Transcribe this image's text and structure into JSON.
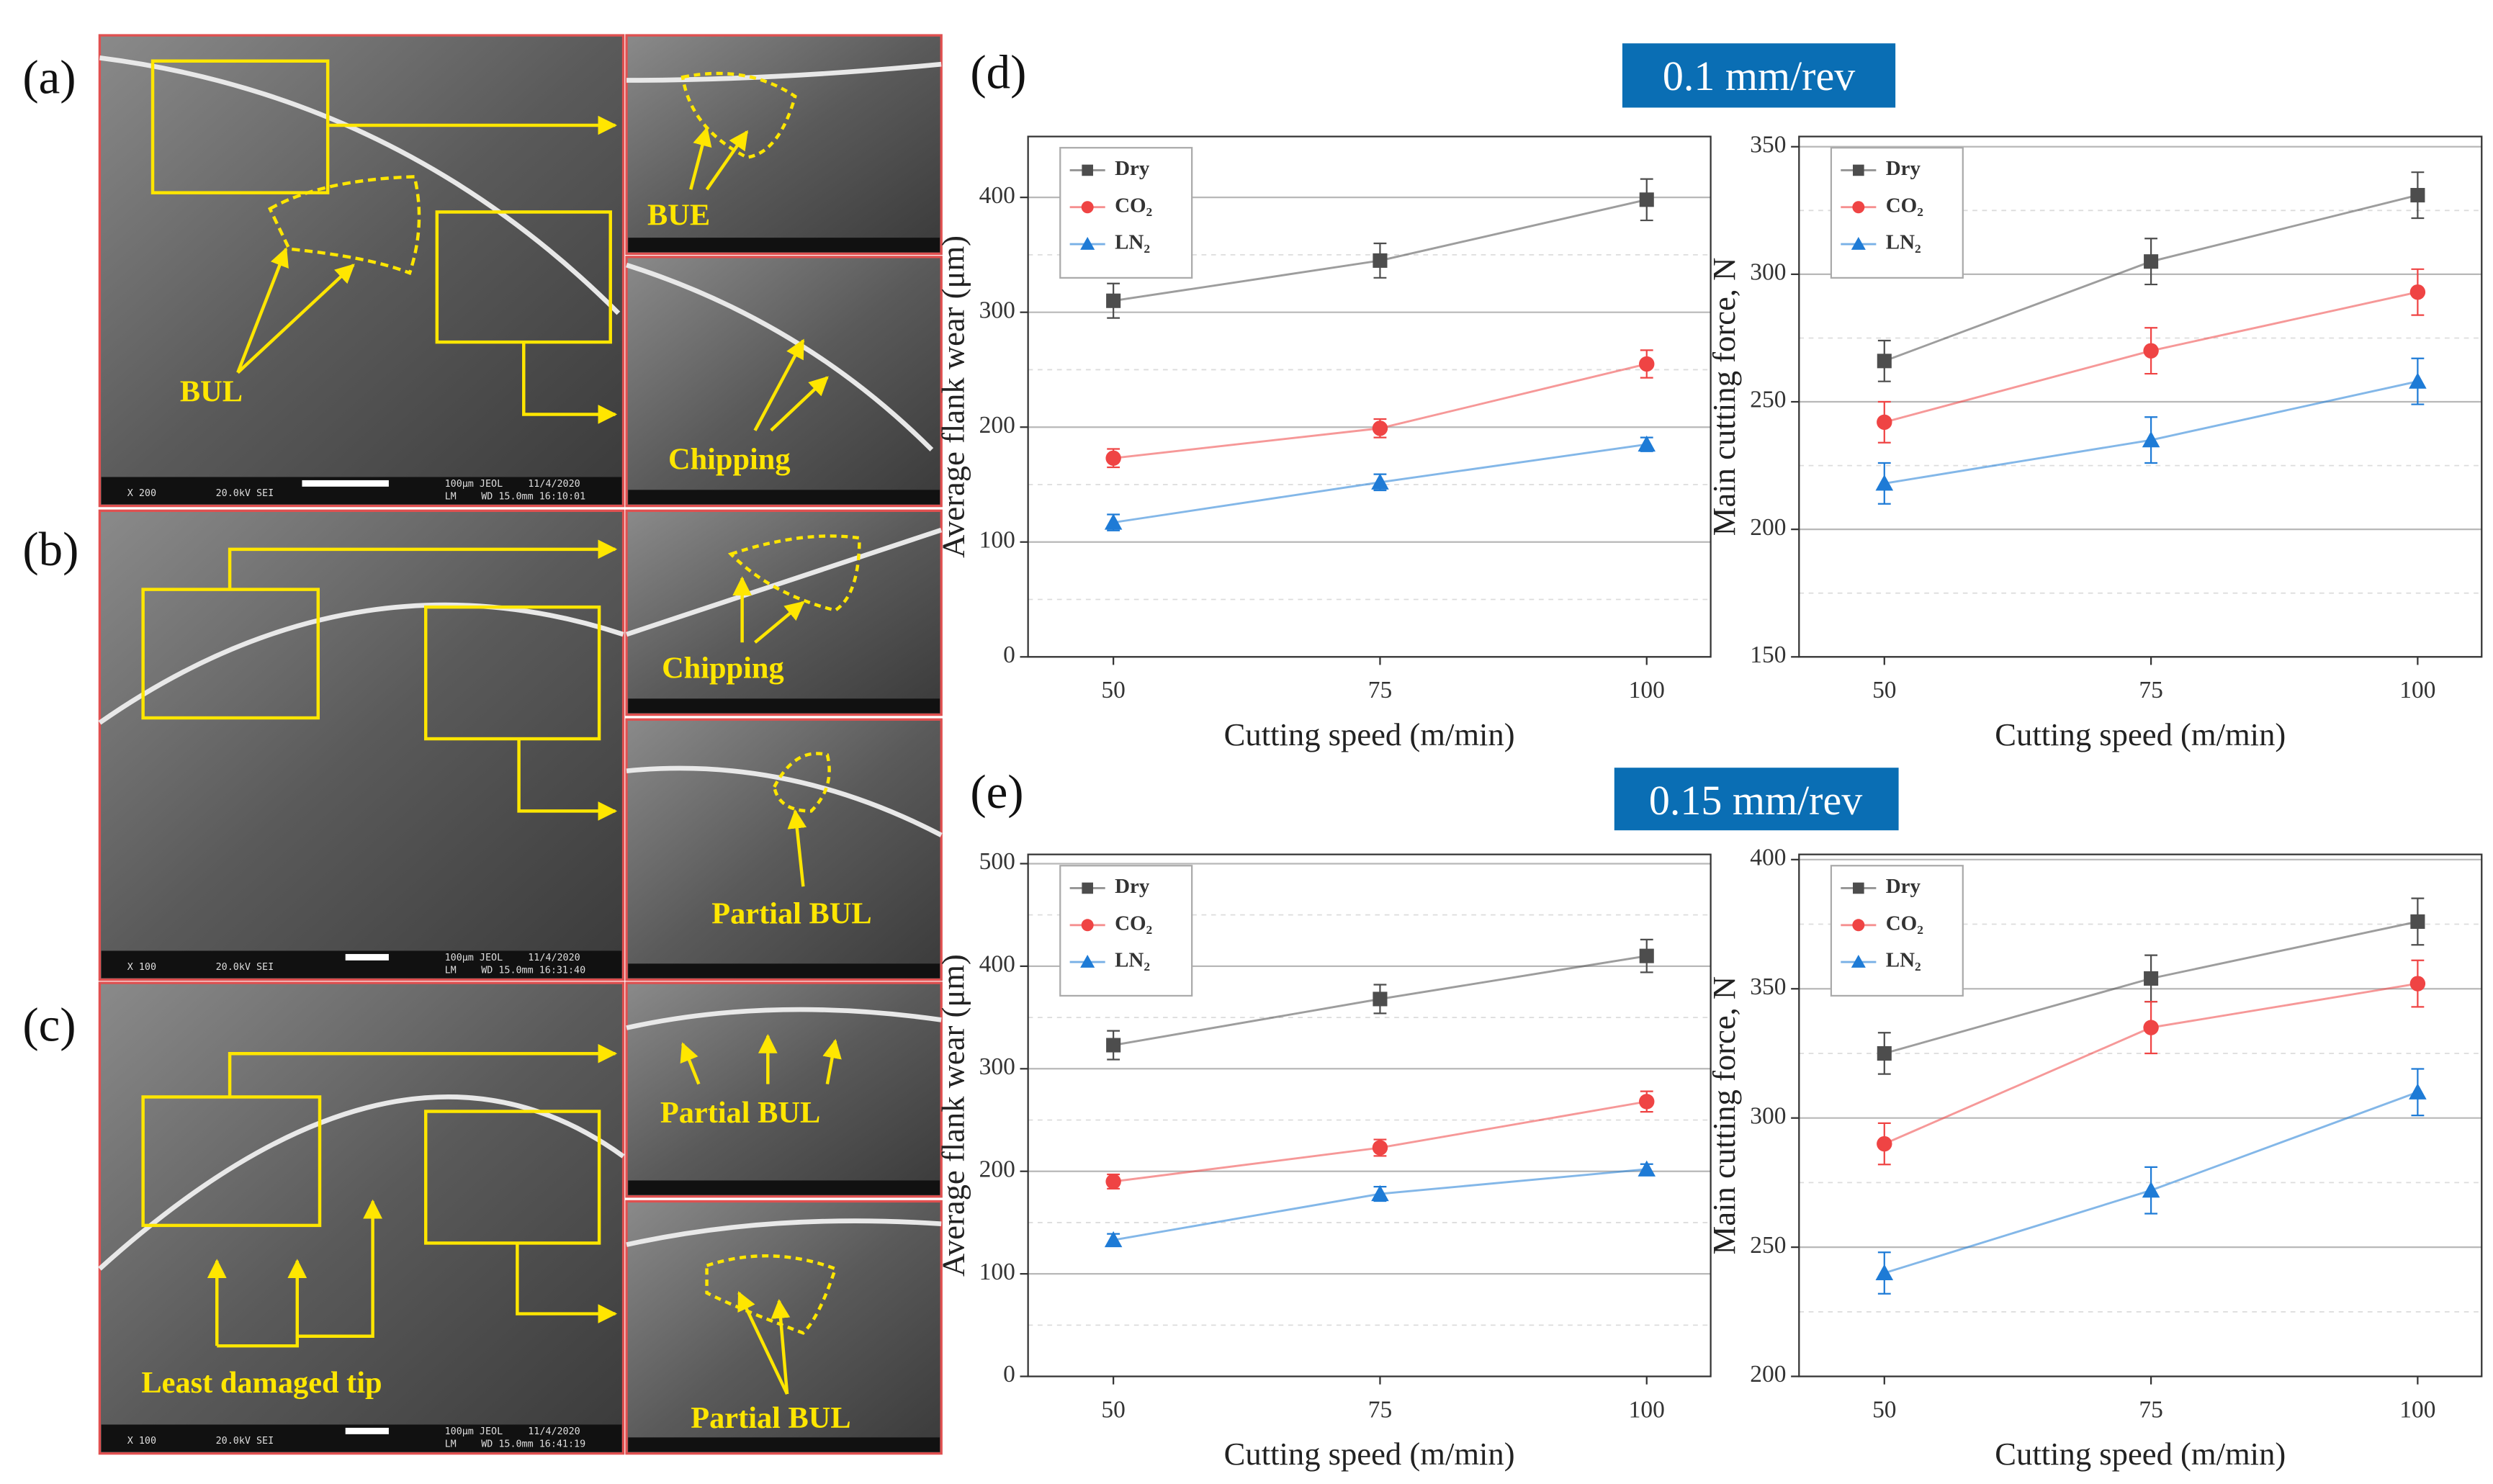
{
  "panel_labels": [
    "(a)",
    "(b)",
    "(c)",
    "(d)",
    "(e)"
  ],
  "feed_labels": [
    "0.1 mm/rev",
    "0.15 mm/rev"
  ],
  "sem": {
    "annotations": [
      "BUL",
      "BUE",
      "Chipping",
      "Chipping",
      "Partial BUL",
      "Partial BUL",
      "Least damaged tip",
      "Partial BUL"
    ],
    "footers": [
      [
        "X 200",
        "20.0kV SEI",
        "100μm JEOL",
        "11/4/2020",
        "LM",
        "WD 15.0mm 16:10:01"
      ],
      [
        "X 100",
        "20.0kV SEI",
        "100μm JEOL",
        "11/4/2020",
        "LM",
        "WD 15.0mm 16:31:40"
      ],
      [
        "X 100",
        "20.0kV SEI",
        "100μm JEOL",
        "11/4/2020",
        "LM",
        "WD 15.0mm 16:41:19"
      ]
    ]
  },
  "chart_data": [
    {
      "type": "line",
      "x_label": "Cutting speed (m/min)",
      "y_label": "Average flank wear (μm)",
      "x": [
        50,
        75,
        100
      ],
      "xlim": [
        42,
        106
      ],
      "xticks": [
        50,
        75,
        100
      ],
      "ylim": [
        0,
        453
      ],
      "yticks": [
        0,
        100,
        200,
        300,
        400
      ],
      "minor_yticks": [
        50,
        150,
        250,
        350
      ],
      "grid": true,
      "legend": "upper left",
      "series": [
        {
          "name": "Dry",
          "color": "#4d4d4d",
          "marker": "square",
          "values": [
            310,
            345,
            398
          ],
          "errors": [
            15,
            15,
            18
          ]
        },
        {
          "name": "CO₂",
          "color": "#ef4444",
          "marker": "circle",
          "values": [
            173,
            199,
            255
          ],
          "errors": [
            8,
            8,
            12
          ]
        },
        {
          "name": "LN₂",
          "color": "#1e7bd6",
          "marker": "triangle",
          "values": [
            117,
            152,
            185
          ],
          "errors": [
            7,
            7,
            6
          ]
        }
      ]
    },
    {
      "type": "line",
      "x_label": "Cutting speed (m/min)",
      "y_label": "Main cutting force, N",
      "x": [
        50,
        75,
        100
      ],
      "xlim": [
        42,
        106
      ],
      "xticks": [
        50,
        75,
        100
      ],
      "ylim": [
        150,
        354
      ],
      "yticks": [
        150,
        200,
        250,
        300,
        350
      ],
      "minor_yticks": [
        175,
        225,
        275,
        325
      ],
      "grid": true,
      "legend": "upper left",
      "series": [
        {
          "name": "Dry",
          "color": "#4d4d4d",
          "marker": "square",
          "values": [
            266,
            305,
            331
          ],
          "errors": [
            8,
            9,
            9
          ]
        },
        {
          "name": "CO₂",
          "color": "#ef4444",
          "marker": "circle",
          "values": [
            242,
            270,
            293
          ],
          "errors": [
            8,
            9,
            9
          ]
        },
        {
          "name": "LN₂",
          "color": "#1e7bd6",
          "marker": "triangle",
          "values": [
            218,
            235,
            258
          ],
          "errors": [
            8,
            9,
            9
          ]
        }
      ]
    },
    {
      "type": "line",
      "x_label": "Cutting speed (m/min)",
      "y_label": "Average flank wear (μm)",
      "x": [
        50,
        75,
        100
      ],
      "xlim": [
        42,
        106
      ],
      "xticks": [
        50,
        75,
        100
      ],
      "ylim": [
        0,
        509
      ],
      "yticks": [
        0,
        100,
        200,
        300,
        400,
        500
      ],
      "minor_yticks": [
        50,
        150,
        250,
        350,
        450
      ],
      "grid": true,
      "legend": "upper left",
      "series": [
        {
          "name": "Dry",
          "color": "#4d4d4d",
          "marker": "square",
          "values": [
            323,
            368,
            410
          ],
          "errors": [
            14,
            14,
            16
          ]
        },
        {
          "name": "CO₂",
          "color": "#ef4444",
          "marker": "circle",
          "values": [
            190,
            223,
            268
          ],
          "errors": [
            7,
            8,
            10
          ]
        },
        {
          "name": "LN₂",
          "color": "#1e7bd6",
          "marker": "triangle",
          "values": [
            133,
            178,
            202
          ],
          "errors": [
            6,
            7,
            5
          ]
        }
      ]
    },
    {
      "type": "line",
      "x_label": "Cutting speed (m/min)",
      "y_label": "Main cutting force, N",
      "x": [
        50,
        75,
        100
      ],
      "xlim": [
        42,
        106
      ],
      "xticks": [
        50,
        75,
        100
      ],
      "ylim": [
        200,
        402
      ],
      "yticks": [
        200,
        250,
        300,
        350,
        400
      ],
      "minor_yticks": [
        225,
        275,
        325,
        375
      ],
      "grid": true,
      "legend": "upper left",
      "series": [
        {
          "name": "Dry",
          "color": "#4d4d4d",
          "marker": "square",
          "values": [
            325,
            354,
            376
          ],
          "errors": [
            8,
            9,
            9
          ]
        },
        {
          "name": "CO₂",
          "color": "#ef4444",
          "marker": "circle",
          "values": [
            290,
            335,
            352
          ],
          "errors": [
            8,
            10,
            9
          ]
        },
        {
          "name": "LN₂",
          "color": "#1e7bd6",
          "marker": "triangle",
          "values": [
            240,
            272,
            310
          ],
          "errors": [
            8,
            9,
            9
          ]
        }
      ]
    }
  ]
}
